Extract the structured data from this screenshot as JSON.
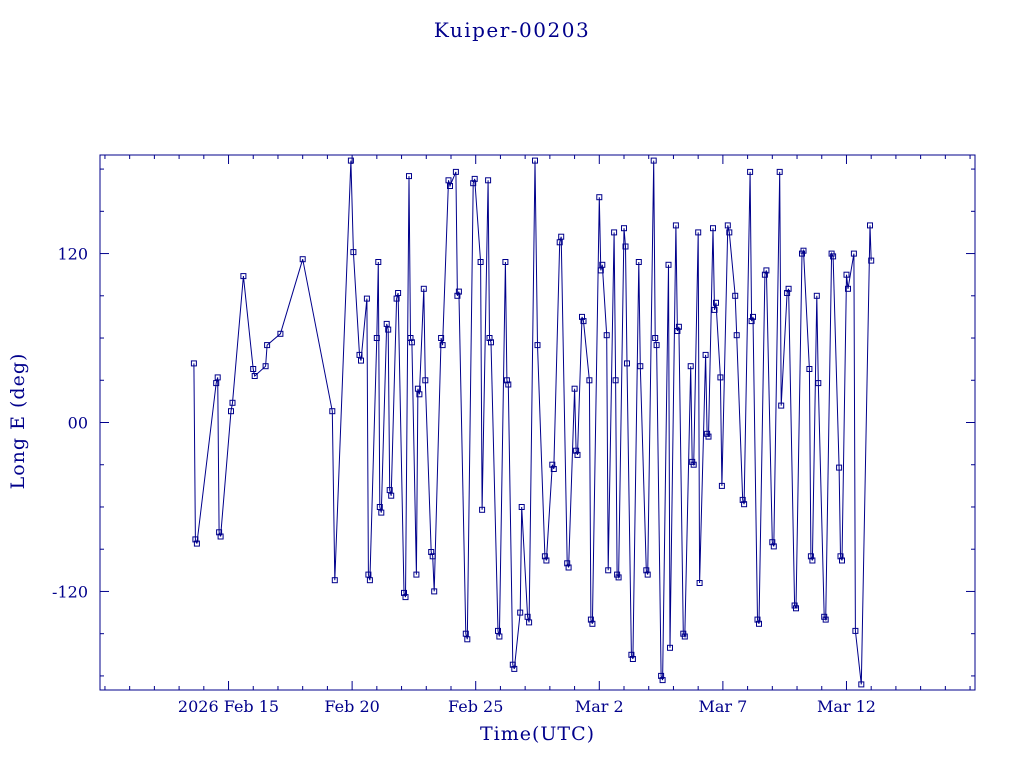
{
  "chart_data": {
    "type": "line",
    "title": "Kuiper-00203",
    "xlabel": "Time(UTC)",
    "ylabel": "Long E (deg)",
    "line_color": "#00008b",
    "marker": "open-square",
    "grid": false,
    "legend": "none",
    "x_unit": "days since 2026 Feb 10 00:00 UTC",
    "xlim": [
      -0.2,
      35.2
    ],
    "ylim": [
      -190,
      190
    ],
    "x_ticks": [
      {
        "t": 5,
        "label": "2026 Feb 15"
      },
      {
        "t": 10,
        "label": "Feb 20"
      },
      {
        "t": 15,
        "label": "Feb 25"
      },
      {
        "t": 20,
        "label": "Mar 2"
      },
      {
        "t": 25,
        "label": "Mar 7"
      },
      {
        "t": 30,
        "label": "Mar 12"
      }
    ],
    "y_ticks": [
      {
        "v": -120,
        "label": "-120"
      },
      {
        "v": 0,
        "label": "00"
      },
      {
        "v": 120,
        "label": "120"
      }
    ],
    "x_minor_step": 1,
    "y_minor_step": 30,
    "points": [
      [
        3.6,
        42
      ],
      [
        3.66,
        -83
      ],
      [
        3.72,
        -86
      ],
      [
        4.5,
        28
      ],
      [
        4.56,
        32
      ],
      [
        4.62,
        -78
      ],
      [
        4.68,
        -81
      ],
      [
        5.1,
        8
      ],
      [
        5.16,
        14
      ],
      [
        5.6,
        104
      ],
      [
        6.0,
        38
      ],
      [
        6.06,
        33
      ],
      [
        6.5,
        40
      ],
      [
        6.56,
        55
      ],
      [
        7.1,
        63
      ],
      [
        8.0,
        116
      ],
      [
        9.2,
        8
      ],
      [
        9.3,
        -112
      ],
      [
        9.95,
        186
      ],
      [
        10.05,
        121
      ],
      [
        10.3,
        48
      ],
      [
        10.36,
        44
      ],
      [
        10.6,
        88
      ],
      [
        10.66,
        -108
      ],
      [
        10.72,
        -112
      ],
      [
        11.0,
        60
      ],
      [
        11.06,
        114
      ],
      [
        11.12,
        -60
      ],
      [
        11.18,
        -64
      ],
      [
        11.4,
        70
      ],
      [
        11.46,
        66
      ],
      [
        11.52,
        -48
      ],
      [
        11.58,
        -52
      ],
      [
        11.8,
        88
      ],
      [
        11.86,
        92
      ],
      [
        12.1,
        -121
      ],
      [
        12.16,
        -124
      ],
      [
        12.3,
        175
      ],
      [
        12.36,
        60
      ],
      [
        12.42,
        57
      ],
      [
        12.6,
        -108
      ],
      [
        12.66,
        24
      ],
      [
        12.72,
        20
      ],
      [
        12.9,
        95
      ],
      [
        12.96,
        30
      ],
      [
        13.2,
        -92
      ],
      [
        13.26,
        -95
      ],
      [
        13.32,
        -120
      ],
      [
        13.6,
        60
      ],
      [
        13.66,
        55
      ],
      [
        13.9,
        172
      ],
      [
        13.96,
        168
      ],
      [
        14.2,
        178
      ],
      [
        14.26,
        90
      ],
      [
        14.32,
        93
      ],
      [
        14.6,
        -150
      ],
      [
        14.66,
        -154
      ],
      [
        14.9,
        170
      ],
      [
        14.96,
        173
      ],
      [
        15.2,
        114
      ],
      [
        15.26,
        -62
      ],
      [
        15.5,
        172
      ],
      [
        15.56,
        60
      ],
      [
        15.62,
        57
      ],
      [
        15.9,
        -148
      ],
      [
        15.96,
        -152
      ],
      [
        16.2,
        114
      ],
      [
        16.26,
        30
      ],
      [
        16.32,
        27
      ],
      [
        16.5,
        -172
      ],
      [
        16.56,
        -175
      ],
      [
        16.8,
        -135
      ],
      [
        16.86,
        -60
      ],
      [
        17.1,
        -138
      ],
      [
        17.16,
        -142
      ],
      [
        17.4,
        186
      ],
      [
        17.5,
        55
      ],
      [
        17.8,
        -95
      ],
      [
        17.86,
        -98
      ],
      [
        18.1,
        -30
      ],
      [
        18.16,
        -33
      ],
      [
        18.4,
        128
      ],
      [
        18.46,
        132
      ],
      [
        18.7,
        -100
      ],
      [
        18.76,
        -103
      ],
      [
        19.0,
        24
      ],
      [
        19.06,
        -20
      ],
      [
        19.12,
        -23
      ],
      [
        19.3,
        75
      ],
      [
        19.36,
        72
      ],
      [
        19.6,
        30
      ],
      [
        19.66,
        -140
      ],
      [
        19.72,
        -143
      ],
      [
        20.0,
        160
      ],
      [
        20.06,
        108
      ],
      [
        20.12,
        112
      ],
      [
        20.3,
        62
      ],
      [
        20.36,
        -105
      ],
      [
        20.6,
        135
      ],
      [
        20.66,
        30
      ],
      [
        20.72,
        -108
      ],
      [
        20.78,
        -110
      ],
      [
        21.0,
        138
      ],
      [
        21.06,
        125
      ],
      [
        21.12,
        42
      ],
      [
        21.3,
        -165
      ],
      [
        21.36,
        -168
      ],
      [
        21.6,
        114
      ],
      [
        21.66,
        40
      ],
      [
        21.9,
        -105
      ],
      [
        21.96,
        -108
      ],
      [
        22.2,
        186
      ],
      [
        22.26,
        60
      ],
      [
        22.32,
        55
      ],
      [
        22.5,
        -180
      ],
      [
        22.56,
        -183
      ],
      [
        22.8,
        112
      ],
      [
        22.86,
        -160
      ],
      [
        23.1,
        140
      ],
      [
        23.16,
        65
      ],
      [
        23.22,
        68
      ],
      [
        23.4,
        -150
      ],
      [
        23.46,
        -152
      ],
      [
        23.7,
        40
      ],
      [
        23.76,
        -28
      ],
      [
        23.82,
        -30
      ],
      [
        24.0,
        135
      ],
      [
        24.06,
        -114
      ],
      [
        24.3,
        48
      ],
      [
        24.36,
        -8
      ],
      [
        24.42,
        -10
      ],
      [
        24.6,
        138
      ],
      [
        24.66,
        80
      ],
      [
        24.72,
        85
      ],
      [
        24.9,
        32
      ],
      [
        24.96,
        -45
      ],
      [
        25.2,
        140
      ],
      [
        25.26,
        135
      ],
      [
        25.5,
        90
      ],
      [
        25.56,
        62
      ],
      [
        25.8,
        -55
      ],
      [
        25.86,
        -58
      ],
      [
        26.1,
        178
      ],
      [
        26.16,
        72
      ],
      [
        26.22,
        75
      ],
      [
        26.4,
        -140
      ],
      [
        26.46,
        -143
      ],
      [
        26.7,
        105
      ],
      [
        26.76,
        108
      ],
      [
        27.0,
        -85
      ],
      [
        27.06,
        -88
      ],
      [
        27.3,
        178
      ],
      [
        27.36,
        12
      ],
      [
        27.6,
        92
      ],
      [
        27.66,
        95
      ],
      [
        27.9,
        -130
      ],
      [
        27.96,
        -132
      ],
      [
        28.2,
        120
      ],
      [
        28.26,
        122
      ],
      [
        28.5,
        38
      ],
      [
        28.56,
        -95
      ],
      [
        28.62,
        -98
      ],
      [
        28.8,
        90
      ],
      [
        28.86,
        28
      ],
      [
        29.1,
        -138
      ],
      [
        29.16,
        -140
      ],
      [
        29.4,
        120
      ],
      [
        29.46,
        118
      ],
      [
        29.7,
        -32
      ],
      [
        29.76,
        -95
      ],
      [
        29.82,
        -98
      ],
      [
        30.0,
        105
      ],
      [
        30.06,
        95
      ],
      [
        30.3,
        120
      ],
      [
        30.36,
        -148
      ],
      [
        30.6,
        -186
      ],
      [
        30.95,
        140
      ],
      [
        31.0,
        115
      ]
    ]
  }
}
